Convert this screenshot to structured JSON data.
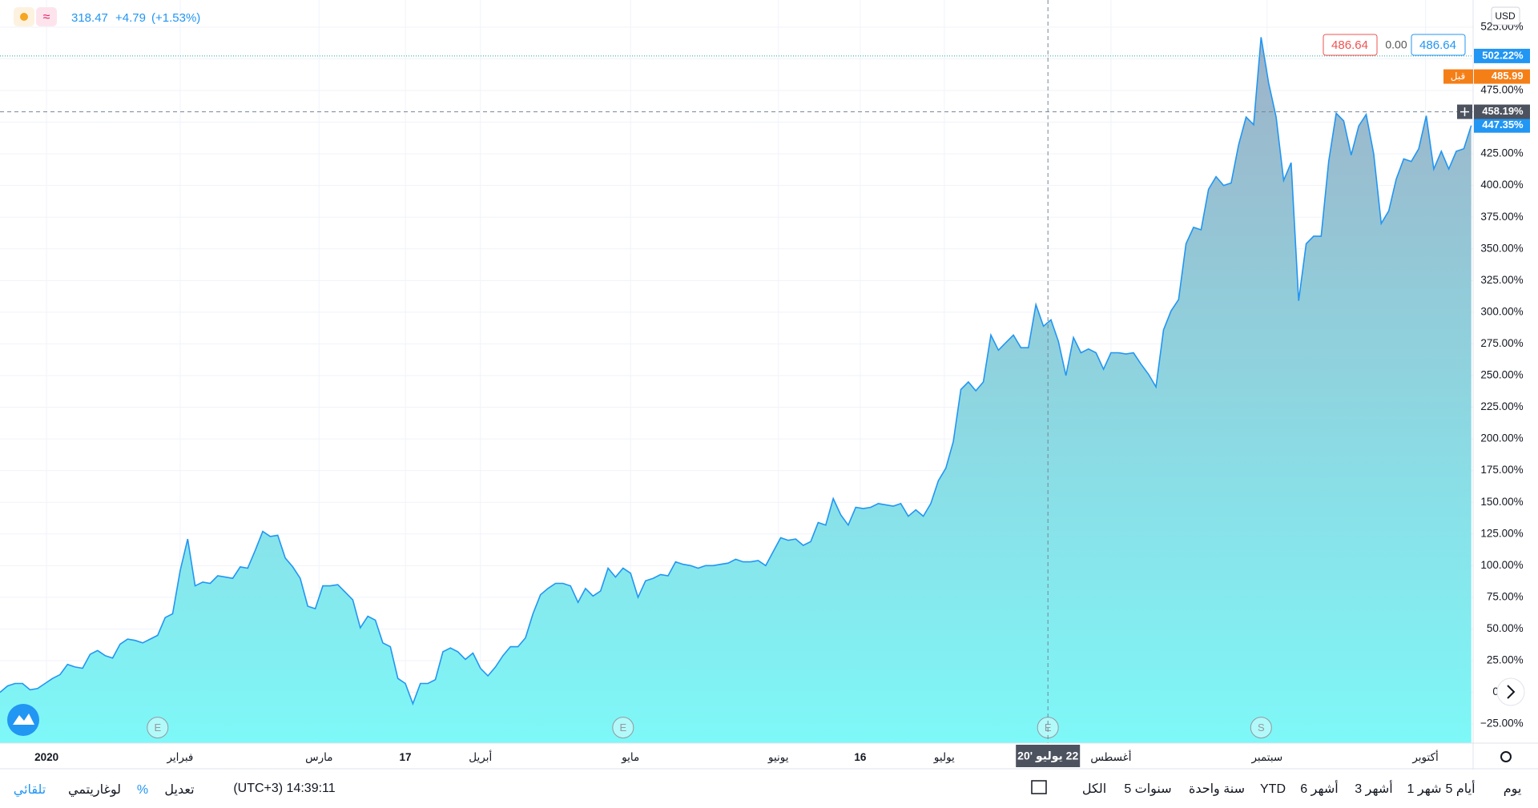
{
  "header": {
    "price": "318.47",
    "change": "+4.79",
    "change_pct": "(+1.53%)"
  },
  "top_boxes": {
    "sell": "486.64",
    "spread": "0.00",
    "buy": "486.64",
    "currency": "USD"
  },
  "chart_data": {
    "type": "area",
    "color": "#2196f3",
    "fill_top": "#9eb1c7",
    "fill_bottom": "#7ef8f8",
    "grid": true,
    "values": [
      0,
      5,
      7,
      7,
      2,
      3,
      7,
      11,
      14,
      22,
      20,
      19,
      30,
      33,
      29,
      27,
      38,
      42,
      41,
      39,
      42,
      45,
      59,
      62,
      96,
      121,
      84,
      87,
      86,
      92,
      91,
      90,
      99,
      98,
      112,
      127,
      123,
      124,
      106,
      99,
      90,
      68,
      66,
      84,
      84,
      85,
      79,
      73,
      51,
      60,
      57,
      39,
      36,
      11,
      7,
      -9,
      7,
      7,
      10,
      32,
      35,
      32,
      26,
      31,
      19,
      13,
      20,
      29,
      36,
      36,
      43,
      62,
      77,
      82,
      86,
      86,
      84,
      71,
      82,
      76,
      80,
      98,
      91,
      98,
      94,
      75,
      88,
      90,
      93,
      92,
      103,
      101,
      100,
      98,
      100,
      100,
      101,
      102,
      105,
      103,
      103,
      104,
      100,
      111,
      122,
      120,
      121,
      116,
      119,
      134,
      132,
      153,
      140,
      132,
      146,
      145,
      146,
      149,
      148,
      147,
      149,
      139,
      144,
      139,
      149,
      167,
      177,
      198,
      239,
      245,
      238,
      245,
      282,
      270,
      276,
      282,
      272,
      272,
      306,
      289,
      294,
      277,
      250,
      280,
      268,
      271,
      268,
      255,
      268,
      268,
      267,
      268,
      259,
      251,
      241,
      286,
      301,
      310,
      354,
      367,
      365,
      397,
      407,
      400,
      402,
      432,
      454,
      448,
      517,
      481,
      454,
      404,
      418,
      309,
      354,
      360,
      360,
      419,
      457,
      451,
      424,
      447,
      456,
      425,
      370,
      380,
      405,
      421,
      419,
      429,
      455,
      413,
      427,
      413,
      427,
      429,
      447.35
    ],
    "xlim": [
      0,
      196
    ],
    "xticks": [
      {
        "value": 6.2,
        "label": "2020"
      },
      {
        "value": 24,
        "label": "فبراير"
      },
      {
        "value": 42.5,
        "label": "مارس"
      },
      {
        "value": 54,
        "label": "17"
      },
      {
        "value": 64,
        "label": "أبريل"
      },
      {
        "value": 84,
        "label": "مايو"
      },
      {
        "value": 103.7,
        "label": "يونيو"
      },
      {
        "value": 114.6,
        "label": "16"
      },
      {
        "value": 125.8,
        "label": "يوليو"
      },
      {
        "value": 148,
        "label": "أغسطس"
      },
      {
        "value": 168.8,
        "label": "سبتمبر"
      },
      {
        "value": 189.9,
        "label": "أكتوبر"
      }
    ],
    "ylim": [
      -40.2,
      546.4
    ],
    "yticks": [
      {
        "value": -25,
        "label": "−25.00%"
      },
      {
        "value": 0,
        "label": "0.00%"
      },
      {
        "value": 25,
        "label": "25.00%"
      },
      {
        "value": 50,
        "label": "50.00%"
      },
      {
        "value": 75,
        "label": "75.00%"
      },
      {
        "value": 100,
        "label": "100.00%"
      },
      {
        "value": 125,
        "label": "125.00%"
      },
      {
        "value": 150,
        "label": "150.00%"
      },
      {
        "value": 175,
        "label": "175.00%"
      },
      {
        "value": 200,
        "label": "200.00%"
      },
      {
        "value": 225,
        "label": "225.00%"
      },
      {
        "value": 250,
        "label": "250.00%"
      },
      {
        "value": 275,
        "label": "275.00%"
      },
      {
        "value": 300,
        "label": "300.00%"
      },
      {
        "value": 325,
        "label": "325.00%"
      },
      {
        "value": 350,
        "label": "350.00%"
      },
      {
        "value": 375,
        "label": "375.00%"
      },
      {
        "value": 400,
        "label": "400.00%"
      },
      {
        "value": 425,
        "label": "425.00%"
      },
      {
        "value": 450,
        "label": "450.00%"
      },
      {
        "value": 475,
        "label": "475.00%"
      },
      {
        "value": 500,
        "label": "500.00%"
      },
      {
        "value": 525,
        "label": "525.00%"
      }
    ],
    "price_tags": [
      {
        "value": 502.22,
        "label": "502.22%",
        "color": "#2196f3"
      },
      {
        "value": 485.99,
        "label": "485.99",
        "tag": "قبل",
        "color": "#f57f17"
      },
      {
        "value": 447.35,
        "label": "447.35%",
        "color": "#2196f3"
      }
    ],
    "crosshair": {
      "y": {
        "value": 458.19,
        "label": "458.19%"
      },
      "x": {
        "value": 139.6,
        "label": "22 يوليو '20"
      }
    },
    "events": [
      {
        "x": 21,
        "label": "E"
      },
      {
        "x": 83,
        "label": "E"
      },
      {
        "x": 139.6,
        "label": "E"
      },
      {
        "x": 168,
        "label": "S"
      }
    ]
  },
  "toolbar": {
    "ranges": [
      "يوم",
      "5 أيام",
      "1 شهر",
      "3 أشهر",
      "6 أشهر",
      "YTD",
      "سنة واحدة",
      "5 سنوات",
      "الكل"
    ],
    "clock": "(UTC+3) 14:39:11",
    "options": [
      "تعديل",
      "%",
      "لوغاريتمي",
      "تلقائي"
    ]
  }
}
